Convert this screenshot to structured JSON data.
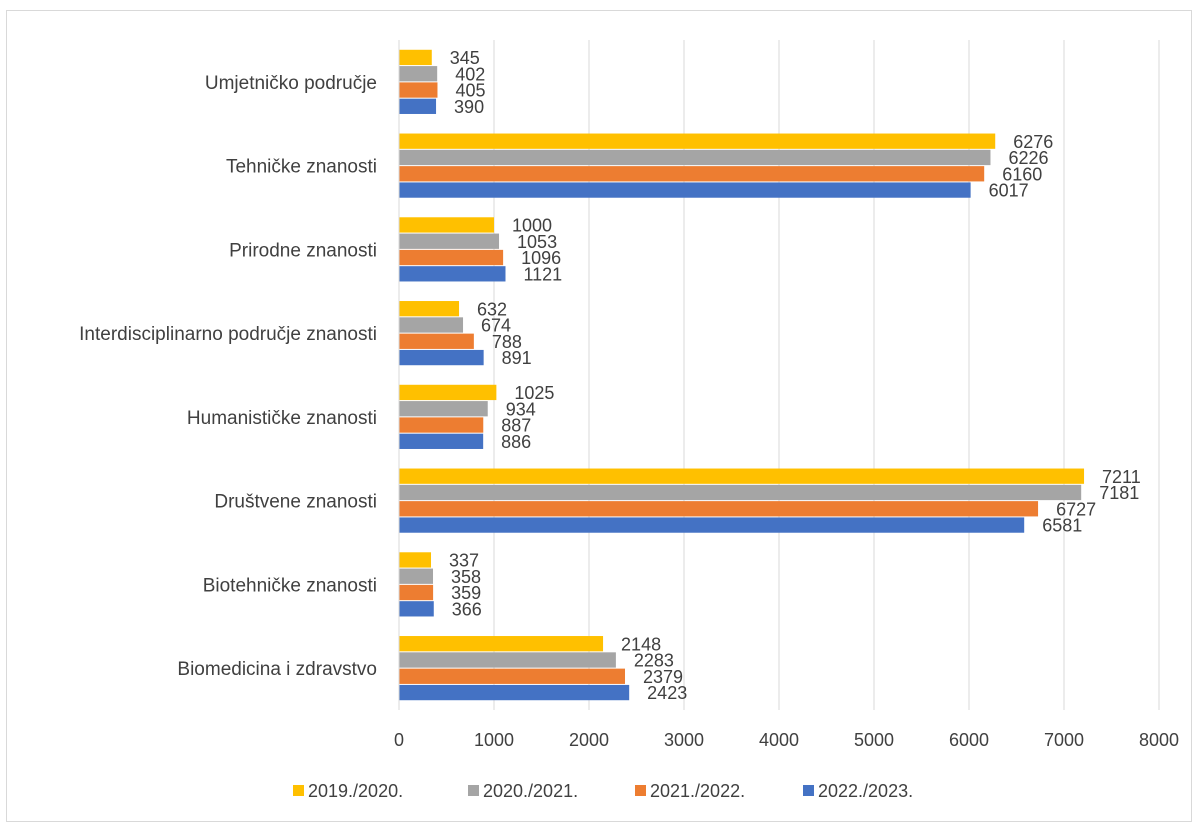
{
  "chart_data": {
    "type": "bar",
    "orientation": "horizontal",
    "categories": [
      "Biomedicina i zdravstvo",
      "Biotehničke znanosti",
      "Društvene znanosti",
      "Humanističke znanosti",
      "Interdisciplinarno područje znanosti",
      "Prirodne znanosti",
      "Tehničke znanosti",
      "Umjetničko područje"
    ],
    "series": [
      {
        "name": "2019./2020.",
        "color": "#FFC000",
        "values": [
          2148,
          337,
          7211,
          1025,
          632,
          1000,
          6276,
          345
        ]
      },
      {
        "name": "2020./2021.",
        "color": "#A5A5A5",
        "values": [
          2283,
          358,
          7181,
          934,
          674,
          1053,
          6226,
          402
        ]
      },
      {
        "name": "2021./2022.",
        "color": "#ED7D31",
        "values": [
          2379,
          359,
          6727,
          887,
          788,
          1096,
          6160,
          405
        ]
      },
      {
        "name": "2022./2023.",
        "color": "#4472C4",
        "values": [
          2423,
          366,
          6581,
          886,
          891,
          1121,
          6017,
          390
        ]
      }
    ],
    "xlim": [
      0,
      8000
    ],
    "xticks": [
      "0",
      "1000",
      "2000",
      "3000",
      "4000",
      "5000",
      "6000",
      "7000",
      "8000"
    ],
    "grid": true,
    "legend_position": "bottom"
  }
}
